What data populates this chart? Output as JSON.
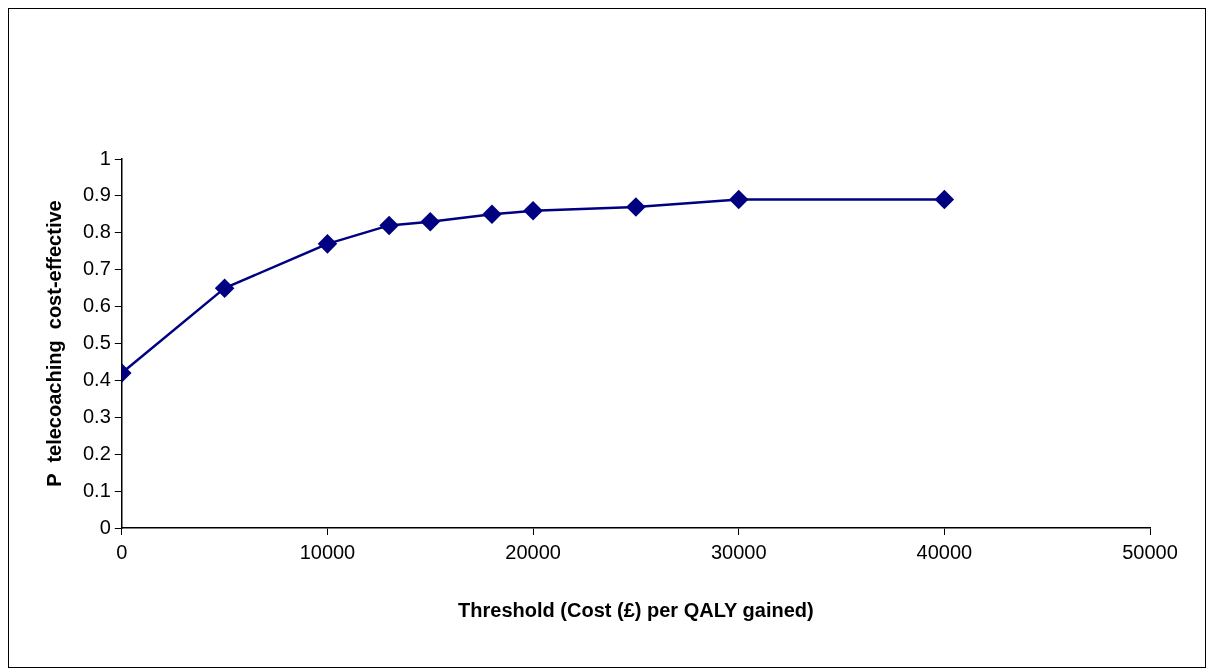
{
  "chart_data": {
    "type": "line",
    "xlabel": "Threshold (Cost (£) per QALY gained)",
    "ylabel": "P  telecoaching  cost-effective",
    "x": [
      0,
      5000,
      10000,
      13000,
      15000,
      18000,
      20000,
      25000,
      30000,
      40000
    ],
    "series": [
      {
        "color": "#000080",
        "values": [
          0.42,
          0.65,
          0.77,
          0.82,
          0.83,
          0.85,
          0.86,
          0.87,
          0.89,
          0.89
        ]
      }
    ],
    "xlim": [
      0,
      50000
    ],
    "xticks": [
      0,
      10000,
      20000,
      30000,
      40000,
      50000
    ],
    "ylim": [
      0,
      1
    ],
    "yticks": [
      0,
      0.1,
      0.2,
      0.3,
      0.4,
      0.5,
      0.6,
      0.7,
      0.8,
      0.9,
      1
    ],
    "grid": false,
    "legend": false,
    "marker": "diamond",
    "line_style": "solid"
  }
}
